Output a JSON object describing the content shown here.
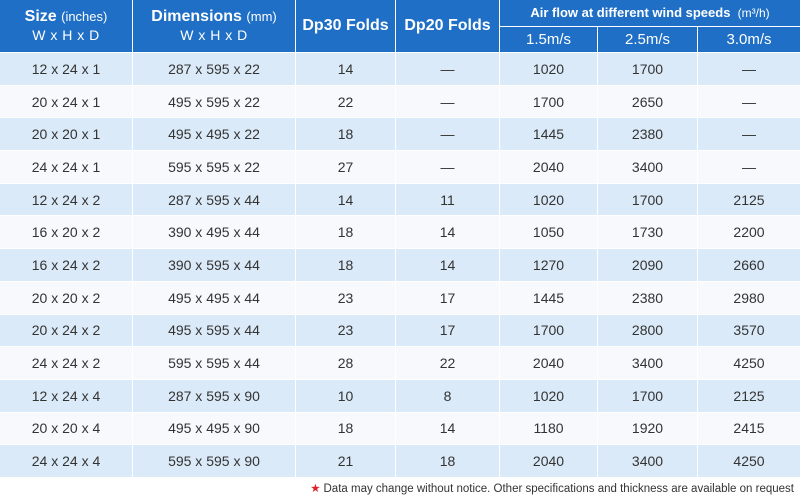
{
  "header": {
    "size_label": "Size",
    "size_unit": "(inches)",
    "size_dims": "W x H x D",
    "dims_label": "Dimensions",
    "dims_unit": "(mm)",
    "dims_dims": "W x H x D",
    "dp30": "Dp30 Folds",
    "dp20": "Dp20 Folds",
    "airflow_label": "Air flow at different wind speeds",
    "airflow_unit": "(m³/h)",
    "speed1": "1.5m/s",
    "speed2": "2.5m/s",
    "speed3": "3.0m/s"
  },
  "rows": [
    [
      "12 x 24 x 1",
      "287 x 595 x 22",
      "14",
      "—",
      "1020",
      "1700",
      "—"
    ],
    [
      "20 x 24 x 1",
      "495 x 595 x 22",
      "22",
      "—",
      "1700",
      "2650",
      "—"
    ],
    [
      "20 x 20 x 1",
      "495 x 495 x 22",
      "18",
      "—",
      "1445",
      "2380",
      "—"
    ],
    [
      "24 x 24 x 1",
      "595 x 595 x 22",
      "27",
      "—",
      "2040",
      "3400",
      "—"
    ],
    [
      "12 x 24 x 2",
      "287 x 595 x 44",
      "14",
      "11",
      "1020",
      "1700",
      "2125"
    ],
    [
      "16 x 20 x 2",
      "390 x 495 x 44",
      "18",
      "14",
      "1050",
      "1730",
      "2200"
    ],
    [
      "16 x 24 x 2",
      "390 x 595 x 44",
      "18",
      "14",
      "1270",
      "2090",
      "2660"
    ],
    [
      "20 x 20 x 2",
      "495 x 495 x 44",
      "23",
      "17",
      "1445",
      "2380",
      "2980"
    ],
    [
      "20 x 24 x 2",
      "495 x 595 x 44",
      "23",
      "17",
      "1700",
      "2800",
      "3570"
    ],
    [
      "24 x 24 x 2",
      "595 x 595 x 44",
      "28",
      "22",
      "2040",
      "3400",
      "4250"
    ],
    [
      "12 x 24 x 4",
      "287 x 595 x 90",
      "10",
      "8",
      "1020",
      "1700",
      "2125"
    ],
    [
      "20 x 20 x 4",
      "495 x 495 x 90",
      "18",
      "14",
      "1180",
      "1920",
      "2415"
    ],
    [
      "24 x 24 x 4",
      "595 x 595 x 90",
      "21",
      "18",
      "2040",
      "3400",
      "4250"
    ]
  ],
  "footnote": {
    "star": "★",
    "text": "Data may change without notice. Other specifications and thickness are available on request"
  },
  "colors": {
    "header_bg": "#1e6fc5",
    "row_alt_a": "#dbeaf8",
    "row_alt_b": "#f7f9fc",
    "star": "#d9232a"
  }
}
